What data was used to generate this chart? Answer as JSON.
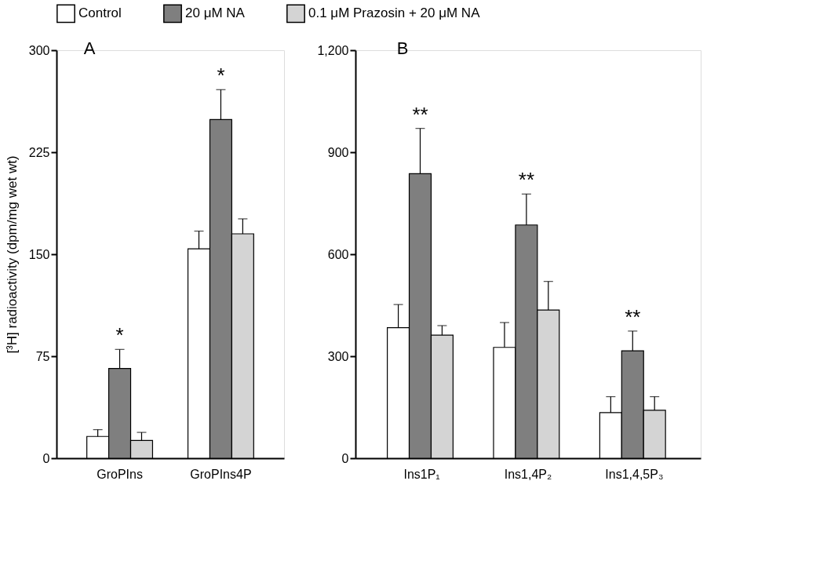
{
  "chart_data": [
    {
      "type": "bar",
      "title": "A",
      "ylabel": "[³H] radioactivity (dpm/mg wet wt)",
      "categories": [
        "GroPIns",
        "GroPIns4P"
      ],
      "series": [
        {
          "name": "Control",
          "color": "#ffffff",
          "values": [
            16,
            154
          ],
          "errors": [
            5,
            13
          ]
        },
        {
          "name": "20 μM NA",
          "color": "#7f7f7f",
          "values": [
            66,
            249
          ],
          "errors": [
            14,
            22
          ],
          "value_labels": [
            "*",
            "*"
          ]
        },
        {
          "name": "0.1 μM Prazosin + 20 μM NA",
          "color": "#d4d4d4",
          "values": [
            13,
            165
          ],
          "errors": [
            6,
            11
          ]
        }
      ],
      "ylim": [
        0,
        300
      ],
      "yticks": [
        0,
        75,
        150,
        225,
        300
      ],
      "grid": false,
      "legend": "top"
    },
    {
      "type": "bar",
      "title": "B",
      "categories": [
        "Ins1P₁",
        "Ins1,4P₂",
        "Ins1,4,5P₃"
      ],
      "series": [
        {
          "name": "Control",
          "color": "#ffffff",
          "values": [
            384,
            326,
            134
          ],
          "errors": [
            68,
            73,
            47
          ]
        },
        {
          "name": "20 μM NA",
          "color": "#7f7f7f",
          "values": [
            837,
            686,
            316
          ],
          "errors": [
            133,
            91,
            58
          ],
          "value_labels": [
            "**",
            "**",
            "**"
          ]
        },
        {
          "name": "0.1 μM Prazosin + 20 μM NA",
          "color": "#d4d4d4",
          "values": [
            362,
            436,
            141
          ],
          "errors": [
            28,
            84,
            40
          ]
        }
      ],
      "ylim": [
        0,
        1200
      ],
      "yticks": [
        0,
        300,
        600,
        900,
        {
          "value": 1200,
          "label": "1,200"
        }
      ],
      "grid": false,
      "legend": "top"
    }
  ]
}
